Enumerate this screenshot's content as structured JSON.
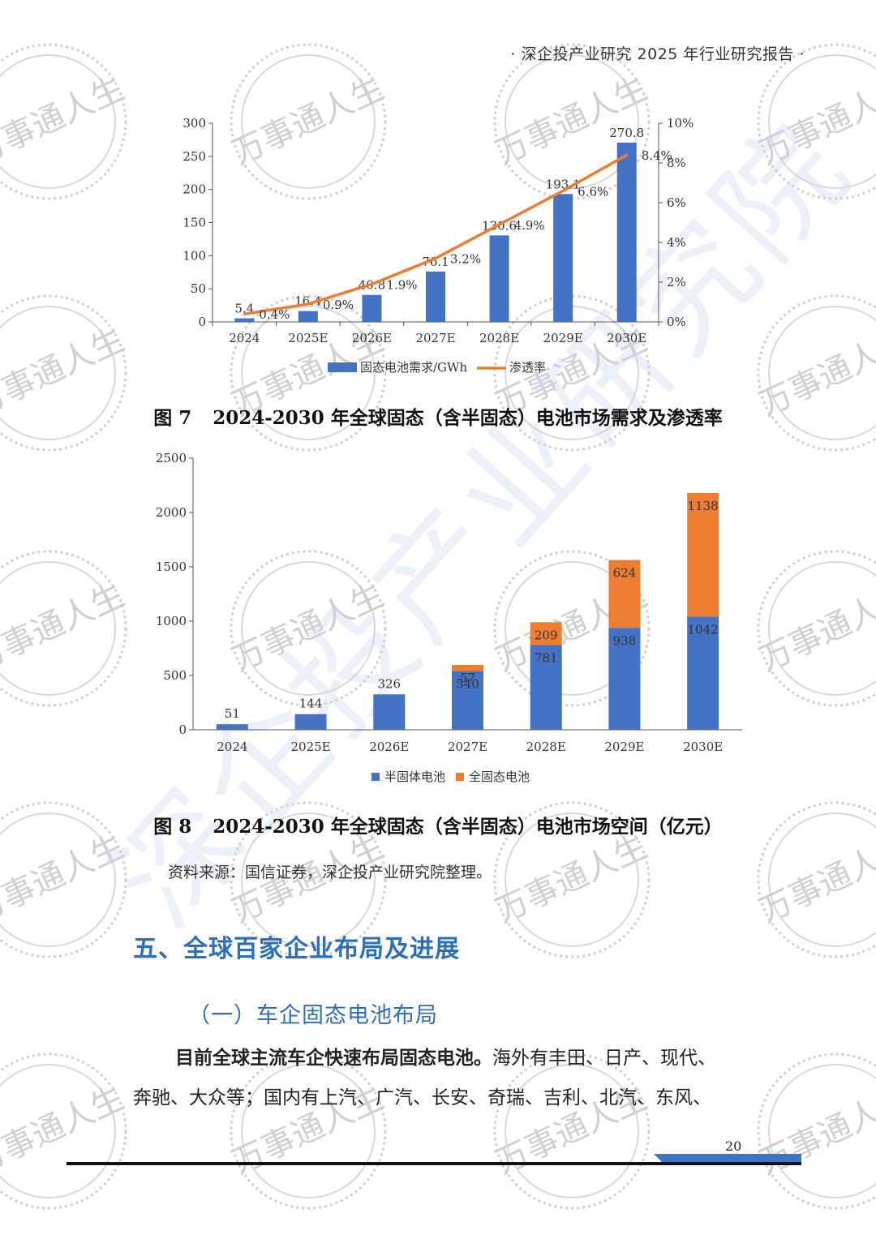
{
  "header": {
    "text": "· 深企投产业研究 2025 年行业研究报告 ·"
  },
  "watermark": {
    "stamp_text": "万事通人生",
    "diagonal_text": "深企投产业研究院"
  },
  "figure7": {
    "number": "图 7",
    "title": "2024-2030 年全球固态（含半固态）电池市场需求及渗透率",
    "chart_data": {
      "type": "bar",
      "categories": [
        "2024",
        "2025E",
        "2026E",
        "2027E",
        "2028E",
        "2029E",
        "2030E"
      ],
      "series": [
        {
          "name": "固态电池需求/GWh",
          "kind": "bar",
          "axis": "left",
          "color": "#4472c4",
          "values": [
            5.4,
            16.4,
            40.8,
            76.1,
            130.6,
            193.1,
            270.8
          ],
          "labels": [
            "5.4",
            "16.4",
            "40.8",
            "76.1",
            "130.6",
            "193.1",
            "270.8"
          ]
        },
        {
          "name": "渗透率",
          "kind": "line",
          "axis": "right",
          "color": "#ed7d31",
          "values": [
            0.4,
            0.9,
            1.9,
            3.2,
            4.9,
            6.6,
            8.4
          ],
          "labels": [
            "0.4%",
            "0.9%",
            "1.9%",
            "3.2%",
            "4.9%",
            "6.6%",
            "8.4%"
          ]
        }
      ],
      "ylim": [
        0,
        300
      ],
      "yticks": [
        "0",
        "50",
        "100",
        "150",
        "200",
        "250",
        "300"
      ],
      "y2lim": [
        0,
        10
      ],
      "y2ticks": [
        "0%",
        "2%",
        "4%",
        "6%",
        "8%",
        "10%"
      ],
      "legend_position": "bottom"
    }
  },
  "figure8": {
    "number": "图 8",
    "title": "2024-2030 年全球固态（含半固态）电池市场空间（亿元）",
    "chart_data": {
      "type": "bar",
      "stacked": true,
      "categories": [
        "2024",
        "2025E",
        "2026E",
        "2027E",
        "2028E",
        "2029E",
        "2030E"
      ],
      "series": [
        {
          "name": "半固体电池",
          "color": "#4472c4",
          "values": [
            51,
            144,
            326,
            540,
            781,
            938,
            1042
          ],
          "labels": [
            "51",
            "144",
            "326",
            "540",
            "781",
            "938",
            "1042"
          ]
        },
        {
          "name": "全固态电池",
          "color": "#ed7d31",
          "values": [
            0,
            0,
            0,
            57,
            209,
            624,
            1138
          ],
          "labels": [
            "",
            "",
            "",
            "57",
            "209",
            "624",
            "1138"
          ]
        }
      ],
      "ylim": [
        0,
        2500
      ],
      "yticks": [
        "0",
        "500",
        "1000",
        "1500",
        "2000",
        "2500"
      ],
      "legend_position": "bottom"
    }
  },
  "source": "资料来源：国信证券，深企投产业研究院整理。",
  "section": {
    "heading": "五、全球百家企业布局及进展",
    "subheading": "（一）车企固态电池布局"
  },
  "paragraph": {
    "bold_lead": "目前全球主流车企快速布局固态电池。",
    "text_line1": "海外有丰田、日产、现代、",
    "text_line2": "奔驰、大众等；国内有上汽、广汽、长安、奇瑞、吉利、北汽、东风、"
  },
  "page_number": "20",
  "colors": {
    "accent": "#2d6fb8",
    "bar_blue": "#4472c4",
    "bar_orange": "#ed7d31"
  }
}
